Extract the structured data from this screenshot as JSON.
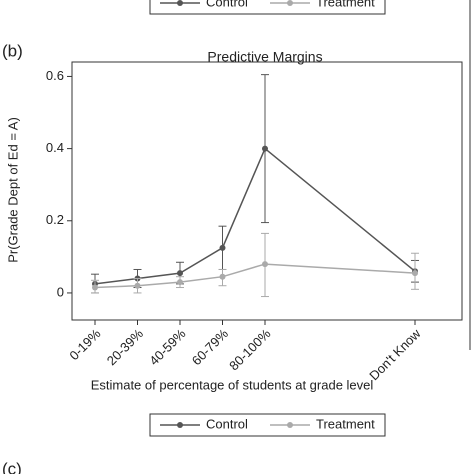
{
  "chart_data": {
    "type": "line",
    "panel_label": "(b)",
    "next_panel_label": "(c)",
    "title": "Predictive Margins",
    "x_label": "Estimate of percentage of students at grade level",
    "y_label": "Pr(Grade Dept of Ed = A)",
    "categories": [
      "0-19%",
      "20-39%",
      "40-59%",
      "60-79%",
      "80-100%",
      "Don't Know"
    ],
    "ylim": [
      -0.075,
      0.64
    ],
    "yticks": [
      0,
      0.2,
      0.4,
      0.6
    ],
    "series": [
      {
        "name": "Control",
        "color": "#555555",
        "values": [
          0.025,
          0.04,
          0.055,
          0.125,
          0.4,
          0.06
        ],
        "lower": [
          0.0,
          0.015,
          0.025,
          0.065,
          0.195,
          0.03
        ],
        "upper": [
          0.052,
          0.065,
          0.085,
          0.185,
          0.605,
          0.09
        ]
      },
      {
        "name": "Treatment",
        "color": "#aaaaaa",
        "values": [
          0.015,
          0.02,
          0.03,
          0.045,
          0.08,
          0.055
        ],
        "lower": [
          0.0,
          0.0,
          0.015,
          0.02,
          -0.01,
          0.01
        ],
        "upper": [
          0.035,
          0.04,
          0.045,
          0.065,
          0.165,
          0.11
        ]
      }
    ]
  }
}
